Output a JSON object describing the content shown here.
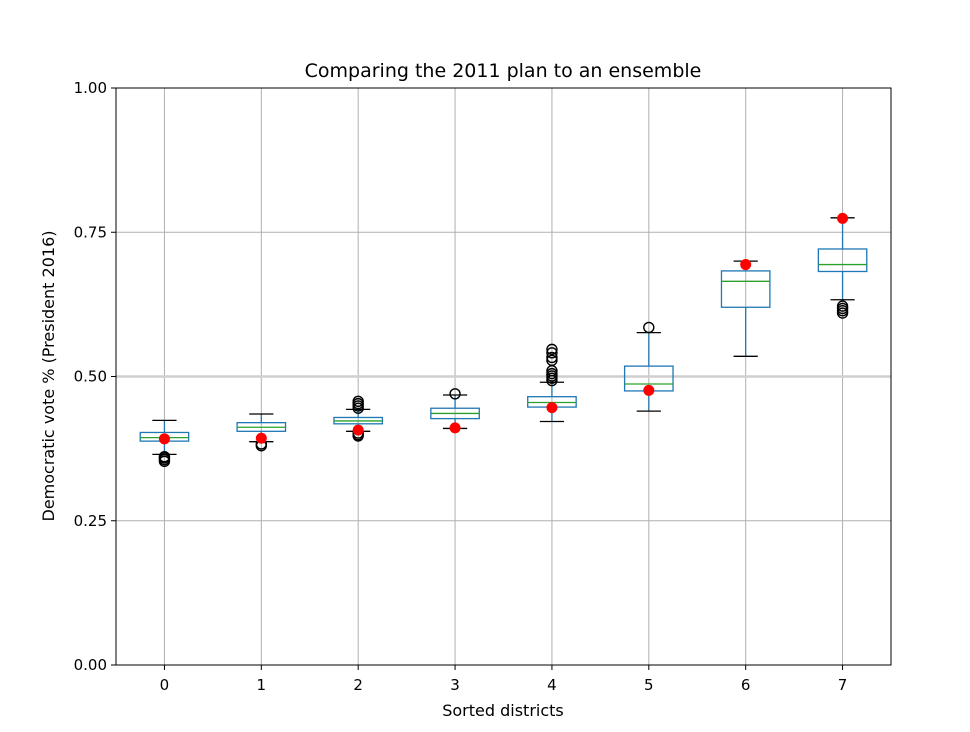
{
  "chart_data": {
    "type": "box",
    "title": "Comparing the 2011 plan to an ensemble",
    "xlabel": "Sorted districts",
    "ylabel": "Democratic vote % (President 2016)",
    "ylim": [
      0,
      1
    ],
    "yticks": [
      0,
      0.25,
      0.5,
      0.75,
      1
    ],
    "ytick_labels": [
      "0.00",
      "0.25",
      "0.50",
      "0.75",
      "1.00"
    ],
    "categories": [
      "0",
      "1",
      "2",
      "3",
      "4",
      "5",
      "6",
      "7"
    ],
    "grid": true,
    "reference_line": 0.5,
    "boxes": [
      {
        "whisker_low": 0.365,
        "q1": 0.388,
        "median": 0.394,
        "q3": 0.403,
        "whisker_high": 0.424,
        "outliers": [
          0.353,
          0.356,
          0.359,
          0.361
        ]
      },
      {
        "whisker_low": 0.387,
        "q1": 0.405,
        "median": 0.412,
        "q3": 0.42,
        "whisker_high": 0.435,
        "outliers": [
          0.38,
          0.383
        ]
      },
      {
        "whisker_low": 0.405,
        "q1": 0.418,
        "median": 0.423,
        "q3": 0.429,
        "whisker_high": 0.443,
        "outliers": [
          0.397,
          0.399,
          0.402,
          0.445,
          0.449,
          0.453,
          0.457
        ]
      },
      {
        "whisker_low": 0.41,
        "q1": 0.427,
        "median": 0.436,
        "q3": 0.445,
        "whisker_high": 0.468,
        "outliers": [
          0.47
        ]
      },
      {
        "whisker_low": 0.422,
        "q1": 0.447,
        "median": 0.455,
        "q3": 0.465,
        "whisker_high": 0.49,
        "outliers": [
          0.493,
          0.497,
          0.501,
          0.505,
          0.51,
          0.528,
          0.533,
          0.541,
          0.547
        ]
      },
      {
        "whisker_low": 0.44,
        "q1": 0.475,
        "median": 0.487,
        "q3": 0.518,
        "whisker_high": 0.576,
        "outliers": [
          0.585
        ]
      },
      {
        "whisker_low": 0.535,
        "q1": 0.62,
        "median": 0.665,
        "q3": 0.683,
        "whisker_high": 0.7,
        "outliers": []
      },
      {
        "whisker_low": 0.633,
        "q1": 0.682,
        "median": 0.694,
        "q3": 0.721,
        "whisker_high": 0.775,
        "outliers": [
          0.61,
          0.614,
          0.618,
          0.622
        ]
      }
    ],
    "plan_points": [
      0.392,
      0.393,
      0.407,
      0.411,
      0.446,
      0.476,
      0.694,
      0.774
    ],
    "colors": {
      "box": "#1f77b4",
      "median": "#2ca02c",
      "plan_point": "#ff0000",
      "grid": "#b0b0b0",
      "outlier": "#000000"
    }
  }
}
